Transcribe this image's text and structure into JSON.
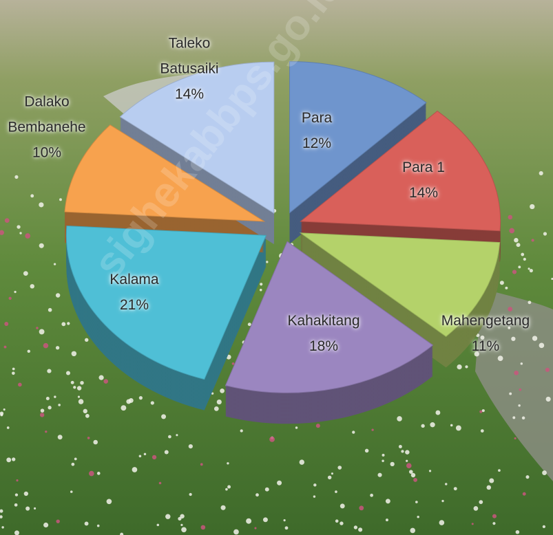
{
  "chart_data": {
    "type": "pie",
    "categories": [
      "Para",
      "Para 1",
      "Mahengetang",
      "Kahakitang",
      "Kalama",
      "Dalako Bembanehe",
      "Taleko Batusaiki"
    ],
    "values": [
      12,
      14,
      11,
      18,
      21,
      10,
      14
    ],
    "value_labels": [
      "12%",
      "14%",
      "11%",
      "18%",
      "21%",
      "10%",
      "14%"
    ],
    "colors": [
      "#6f95cd",
      "#d9605a",
      "#b4d26a",
      "#9b86c0",
      "#4fbfd6",
      "#f7a24e",
      "#b8cdf0"
    ],
    "watermark": "sighekabbps.go.id"
  }
}
